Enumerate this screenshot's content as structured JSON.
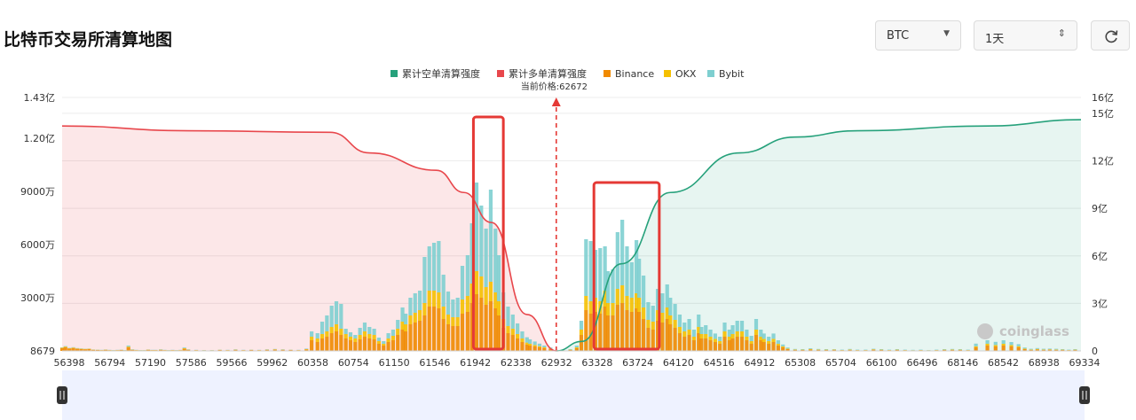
{
  "page_title": "比特币交易所清算地图",
  "controls": {
    "coin": "BTC",
    "range": "1天",
    "refresh_icon": "refresh-icon",
    "coin_chevron_icon": "caret-down-icon",
    "range_spinner_icon": "updown-spinner-icon"
  },
  "watermark": "coinglass",
  "colors": {
    "short_cum": "#26a17b",
    "long_cum": "#e8474c",
    "binance": "#f08a00",
    "okx": "#f5c000",
    "bybit": "#7ecfd0",
    "highlight": "#e53935",
    "slider": "#eef2ff"
  },
  "chart_data": {
    "type": "bar",
    "legend": [
      "累计空单清算强度",
      "累计多单清算强度",
      "Binance",
      "OKX",
      "Bybit"
    ],
    "legend_position": "top-center",
    "current_price_label": "当前价格:62672",
    "current_price": 62672,
    "x_tick_labels": [
      "56398",
      "56794",
      "57190",
      "57586",
      "59566",
      "59962",
      "60358",
      "60754",
      "61150",
      "61546",
      "61942",
      "62338",
      "62932",
      "63328",
      "63724",
      "64120",
      "64516",
      "64912",
      "65308",
      "65704",
      "66100",
      "66496",
      "68146",
      "68542",
      "68938",
      "69334"
    ],
    "x_range": [
      56398,
      69334
    ],
    "y_left_tick_labels": [
      "8679",
      "3000万",
      "6000万",
      "9000万",
      "1.20亿",
      "1.43亿"
    ],
    "y_left_range_wan": [
      0,
      14300
    ],
    "y_right_tick_labels": [
      "0",
      "3亿",
      "6亿",
      "9亿",
      "12亿",
      "15亿",
      "16亿"
    ],
    "y_right_range_yi": [
      0,
      16
    ],
    "grid": true,
    "cumulative_long_yi": [
      [
        56398,
        14.2
      ],
      [
        58000,
        13.9
      ],
      [
        59800,
        13.8
      ],
      [
        60300,
        12.5
      ],
      [
        61150,
        11.4
      ],
      [
        61500,
        10.0
      ],
      [
        61850,
        8.1
      ],
      [
        62300,
        2.3
      ],
      [
        62672,
        0
      ]
    ],
    "cumulative_short_yi": [
      [
        62672,
        0
      ],
      [
        63000,
        0.6
      ],
      [
        63500,
        5.5
      ],
      [
        64120,
        10.0
      ],
      [
        65000,
        12.5
      ],
      [
        65700,
        13.5
      ],
      [
        66496,
        13.9
      ],
      [
        68146,
        14.2
      ],
      [
        69334,
        14.6
      ]
    ],
    "stacks_wan": {
      "price": [
        56398,
        56440,
        56490,
        56540,
        56590,
        56640,
        56690,
        56740,
        56794,
        56850,
        56900,
        56950,
        57000,
        57050,
        57100,
        57150,
        57190,
        57240,
        57290,
        57340,
        57390,
        57440,
        57490,
        57540,
        57586,
        57650,
        57700,
        57750,
        57800,
        57850,
        57900,
        57950,
        58000,
        58100,
        58200,
        58300,
        58400,
        58500,
        58600,
        58700,
        58800,
        58900,
        59000,
        59100,
        59200,
        59300,
        59400,
        59500,
        59566,
        59640,
        59700,
        59760,
        59820,
        59880,
        59940,
        60000,
        60060,
        60120,
        60180,
        60240,
        60300,
        60360,
        60420,
        60480,
        60540,
        60600,
        60660,
        60720,
        60760,
        60820,
        60880,
        60940,
        61000,
        61060,
        61120,
        61180,
        61240,
        61300,
        61360,
        61420,
        61480,
        61546,
        61600,
        61660,
        61720,
        61780,
        61840,
        61900,
        61942,
        62000,
        62060,
        62120,
        62180,
        62240,
        62300,
        62338,
        62400,
        62460,
        62520,
        62600,
        62672,
        62750,
        62850,
        62932,
        62990,
        63050,
        63110,
        63170,
        63230,
        63290,
        63328,
        63390,
        63450,
        63510,
        63570,
        63630,
        63690,
        63724,
        63780,
        63840,
        63900,
        63960,
        64020,
        64080,
        64120,
        64180,
        64240,
        64300,
        64360,
        64420,
        64480,
        64516,
        64570,
        64630,
        64690,
        64750,
        64810,
        64870,
        64912,
        64970,
        65030,
        65090,
        65150,
        65210,
        65270,
        65308,
        65370,
        65430,
        65490,
        65550,
        65610,
        65704,
        65800,
        65900,
        66000,
        66100,
        66200,
        66300,
        66400,
        66496,
        66600,
        66700,
        66800,
        66900,
        67000,
        67100,
        67200,
        67300,
        67400,
        67500,
        67600,
        67700,
        67800,
        67900,
        68000,
        68146,
        68250,
        68350,
        68450,
        68542,
        68620,
        68700,
        68780,
        68860,
        68938,
        69020,
        69100,
        69180,
        69260,
        69334
      ],
      "binance": [
        150,
        200,
        130,
        160,
        120,
        100,
        90,
        100,
        60,
        50,
        40,
        60,
        40,
        30,
        40,
        50,
        30,
        200,
        60,
        40,
        30,
        30,
        60,
        40,
        40,
        60,
        40,
        30,
        40,
        30,
        40,
        120,
        60,
        40,
        30,
        30,
        50,
        40,
        60,
        40,
        50,
        40,
        60,
        70,
        60,
        50,
        40,
        80,
        600,
        500,
        700,
        800,
        1000,
        1100,
        900,
        700,
        600,
        500,
        650,
        800,
        700,
        650,
        400,
        300,
        500,
        600,
        900,
        1200,
        1100,
        1500,
        1600,
        1700,
        2000,
        2500,
        2500,
        2400,
        1800,
        1500,
        1400,
        1400,
        2100,
        2200,
        2700,
        3200,
        3000,
        2600,
        2800,
        2400,
        2000,
        1300,
        1000,
        900,
        700,
        500,
        350,
        300,
        250,
        200,
        150,
        100,
        30,
        30,
        50,
        150,
        900,
        2300,
        2100,
        2200,
        2100,
        2500,
        2000,
        2000,
        2600,
        2700,
        2300,
        2200,
        2400,
        2200,
        1800,
        1300,
        1200,
        1700,
        1600,
        1800,
        1500,
        1300,
        1000,
        800,
        900,
        600,
        1000,
        700,
        700,
        600,
        500,
        400,
        800,
        600,
        700,
        800,
        800,
        600,
        400,
        900,
        600,
        500,
        400,
        500,
        300,
        200,
        100,
        60,
        50,
        80,
        60,
        50,
        60,
        40,
        60,
        40,
        40,
        70,
        50,
        40,
        50,
        40,
        30,
        40,
        30,
        40,
        50,
        60,
        50,
        40,
        200,
        300,
        250,
        300,
        250,
        200,
        100,
        60,
        80,
        60,
        70,
        60,
        50,
        40,
        50
      ],
      "okx": [
        30,
        40,
        20,
        30,
        20,
        20,
        20,
        20,
        10,
        10,
        10,
        10,
        10,
        10,
        10,
        10,
        10,
        40,
        10,
        10,
        10,
        10,
        10,
        10,
        10,
        10,
        10,
        10,
        10,
        10,
        10,
        30,
        10,
        10,
        10,
        10,
        10,
        10,
        10,
        10,
        10,
        10,
        10,
        20,
        10,
        10,
        10,
        20,
        200,
        200,
        250,
        300,
        350,
        400,
        350,
        250,
        200,
        200,
        250,
        300,
        250,
        250,
        150,
        100,
        200,
        250,
        350,
        450,
        400,
        500,
        550,
        600,
        700,
        900,
        900,
        900,
        700,
        550,
        500,
        500,
        800,
        900,
        1100,
        1300,
        1200,
        1000,
        1100,
        900,
        800,
        500,
        400,
        350,
        250,
        200,
        120,
        100,
        80,
        60,
        50,
        30,
        10,
        10,
        20,
        50,
        300,
        800,
        700,
        800,
        700,
        900,
        700,
        700,
        900,
        1000,
        800,
        800,
        850,
        800,
        650,
        450,
        450,
        600,
        550,
        650,
        500,
        450,
        350,
        300,
        300,
        200,
        350,
        250,
        250,
        200,
        180,
        150,
        300,
        200,
        250,
        300,
        300,
        200,
        150,
        300,
        200,
        180,
        150,
        180,
        100,
        60,
        30,
        20,
        20,
        30,
        20,
        20,
        20,
        10,
        20,
        10,
        10,
        20,
        20,
        10,
        20,
        10,
        10,
        10,
        10,
        10,
        20,
        20,
        20,
        10,
        60,
        100,
        80,
        100,
        80,
        60,
        30,
        20,
        30,
        20,
        20,
        20,
        20,
        10,
        20
      ],
      "bybit": [
        20,
        30,
        20,
        20,
        20,
        20,
        10,
        10,
        10,
        10,
        10,
        10,
        10,
        10,
        10,
        10,
        10,
        60,
        20,
        10,
        10,
        10,
        10,
        10,
        10,
        20,
        10,
        10,
        10,
        10,
        10,
        40,
        20,
        10,
        10,
        10,
        10,
        10,
        20,
        10,
        10,
        10,
        20,
        20,
        20,
        10,
        10,
        30,
        300,
        300,
        700,
        900,
        1200,
        1300,
        1400,
        300,
        250,
        200,
        400,
        500,
        400,
        350,
        200,
        150,
        300,
        350,
        500,
        800,
        600,
        1000,
        1100,
        1100,
        2600,
        2500,
        2700,
        2900,
        1800,
        1300,
        1000,
        1100,
        1900,
        2300,
        3400,
        5000,
        4000,
        3300,
        5200,
        3600,
        2600,
        1500,
        1100,
        800,
        600,
        400,
        300,
        250,
        200,
        150,
        100,
        60,
        20,
        20,
        30,
        100,
        500,
        3200,
        3400,
        2700,
        3000,
        2500,
        1800,
        1900,
        3200,
        3700,
        2800,
        2000,
        3000,
        2200,
        1800,
        1000,
        900,
        1200,
        1100,
        1300,
        1000,
        900,
        700,
        500,
        600,
        400,
        700,
        400,
        500,
        400,
        300,
        250,
        500,
        400,
        500,
        600,
        600,
        400,
        300,
        600,
        400,
        300,
        250,
        300,
        200,
        100,
        60,
        30,
        30,
        40,
        30,
        30,
        20,
        20,
        30,
        20,
        20,
        30,
        30,
        20,
        30,
        20,
        20,
        20,
        10,
        20,
        30,
        30,
        30,
        20,
        150,
        200,
        180,
        200,
        170,
        120,
        60,
        40,
        50,
        40,
        40,
        40,
        30,
        20,
        30
      ]
    },
    "highlight_ranges": [
      [
        61620,
        62000
      ],
      [
        63150,
        63980
      ]
    ]
  }
}
